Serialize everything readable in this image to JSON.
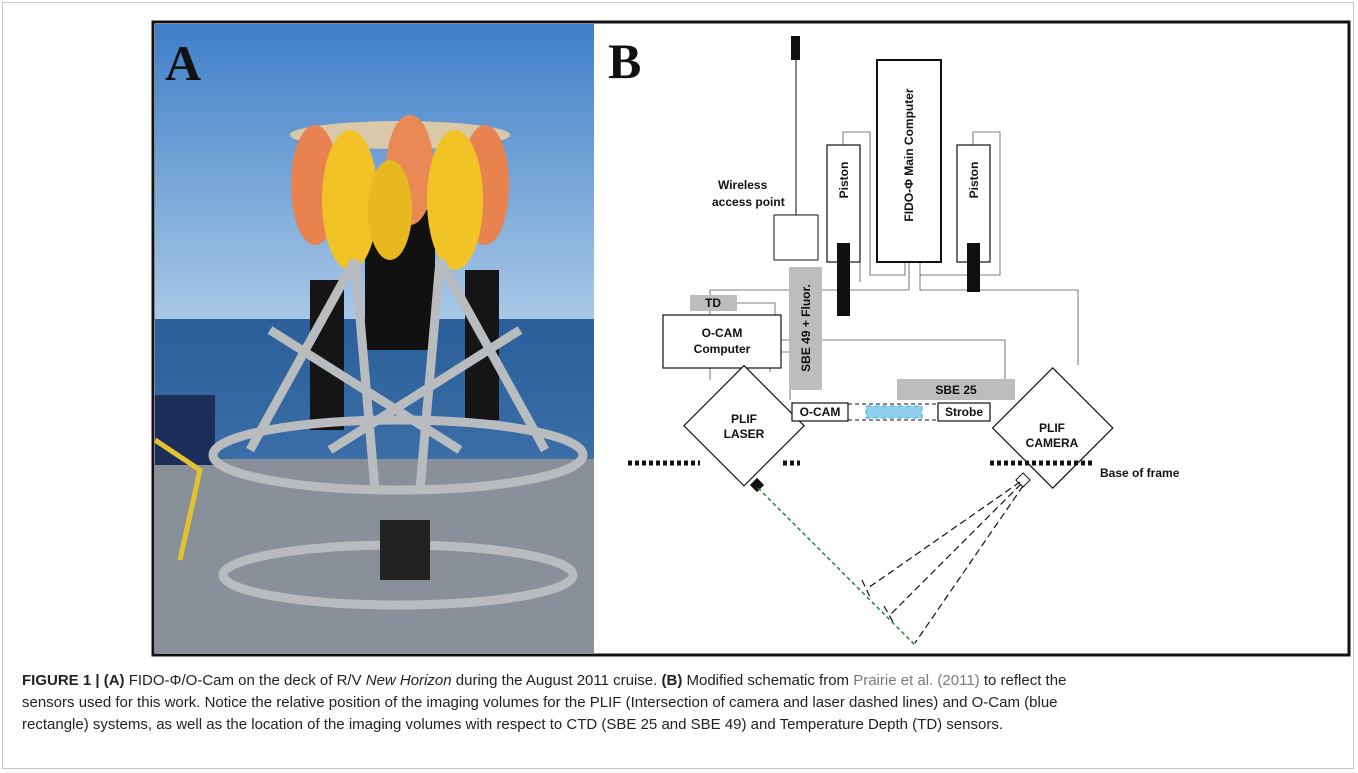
{
  "panel_a": {
    "label": "A"
  },
  "panel_b": {
    "label": "B",
    "labels": {
      "wireless_1": "Wireless",
      "wireless_2": "access point",
      "piston_left": "Piston",
      "main_computer": "FIDO-Φ Main Computer",
      "piston_right": "Piston",
      "sbe49": "SBE 49 + Fluor.",
      "td": "TD",
      "ocam_computer_1": "O-CAM",
      "ocam_computer_2": "Computer",
      "sbe25": "SBE 25",
      "plif_laser_1": "PLIF",
      "plif_laser_2": "LASER",
      "ocam": "O-CAM",
      "strobe": "Strobe",
      "plif_camera_1": "PLIF",
      "plif_camera_2": "CAMERA",
      "base": "Base of frame"
    }
  },
  "caption": {
    "segments": [
      "FIGURE 1 | (A)",
      " FIDO-Φ/O-Cam on the deck of R/V ",
      "New Horizon",
      " during the August 2011 cruise. ",
      "(B)",
      " Modified schematic from ",
      "Prairie et al. (2011)",
      " to reflect the",
      "sensors used for this work. Notice the relative position of the imaging volumes for the PLIF (Intersection of camera and laser dashed lines) and O-Cam (blue",
      "rectangle) systems, as well as the location of the imaging volumes with respect to CTD (SBE 25 and SBE 49) and Temperature Depth (TD) sensors."
    ]
  }
}
